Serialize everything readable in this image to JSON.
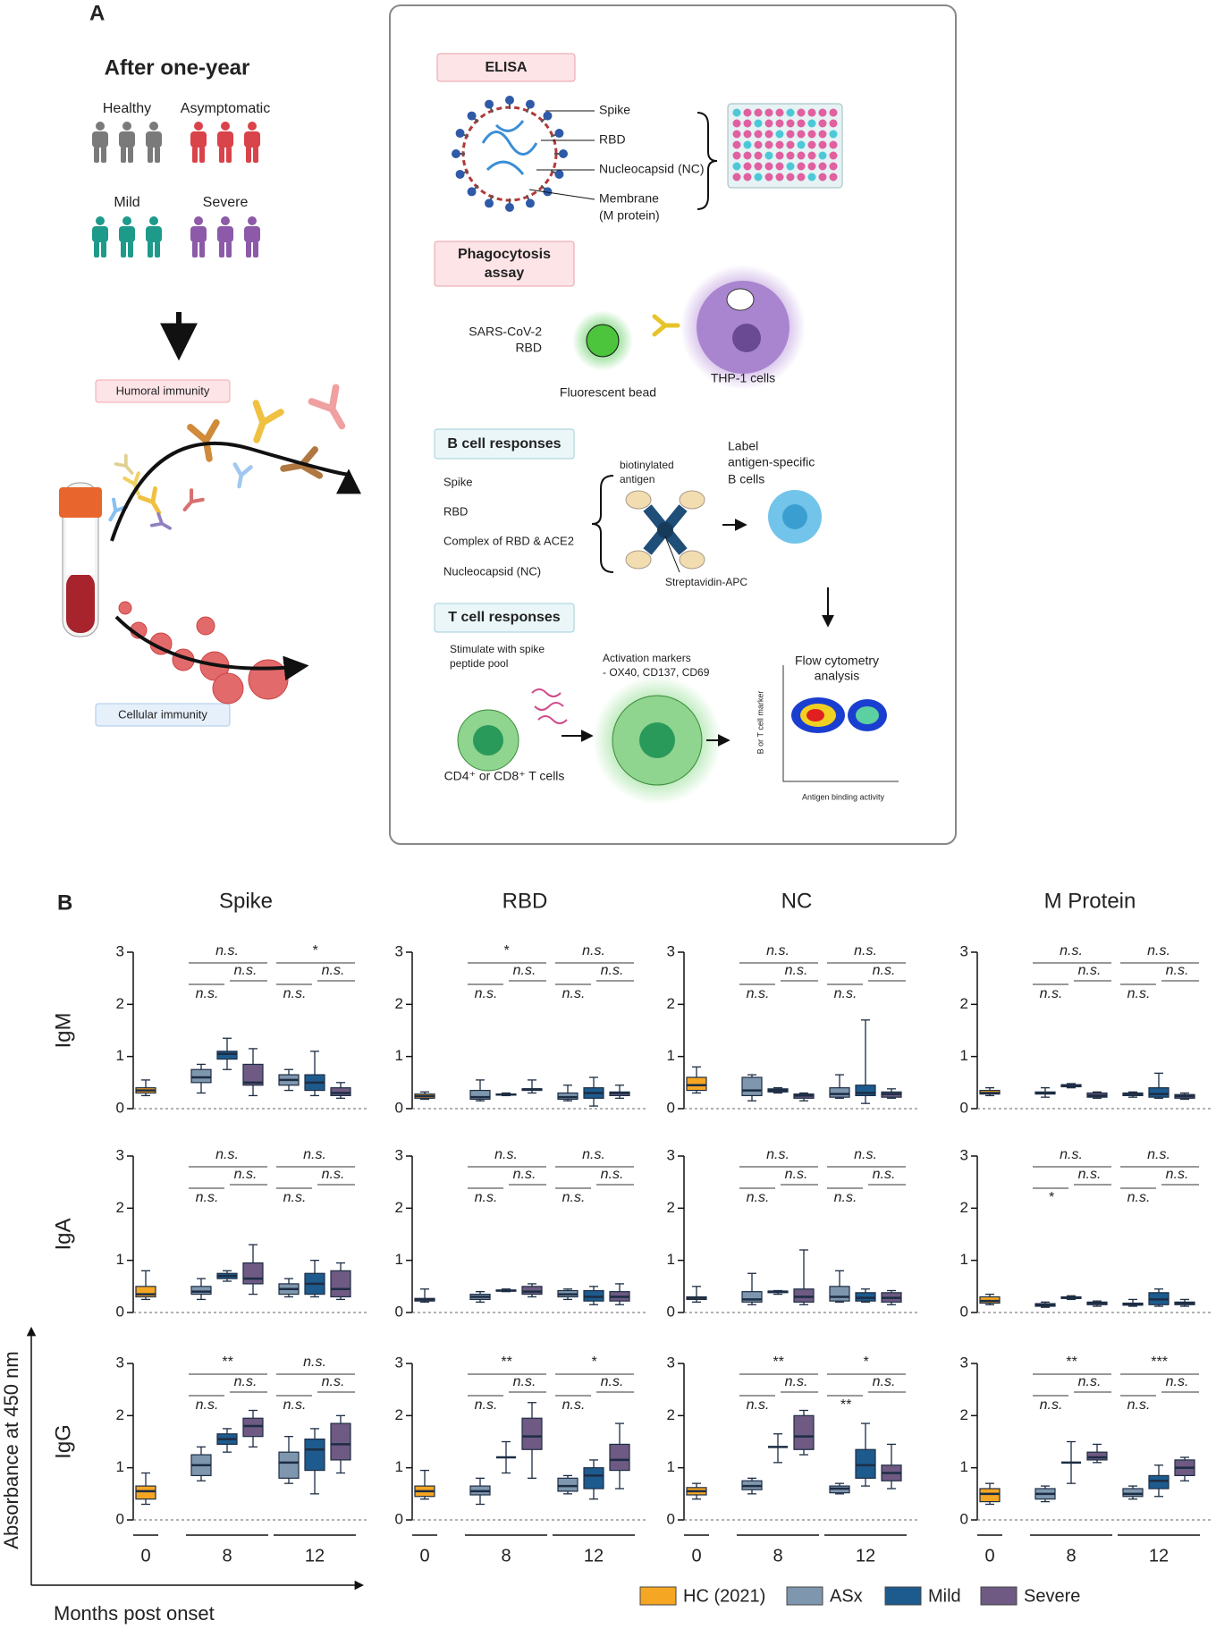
{
  "panel_a": {
    "label": "A",
    "cohort_title": "After one-year",
    "groups": [
      "Healthy",
      "Asymptomatic",
      "Mild",
      "Severe"
    ],
    "humoral": "Humoral immunity",
    "cellular": "Cellular immunity",
    "elisa": {
      "title": "ELISA",
      "antigens": [
        "Spike",
        "RBD",
        "Nucleocapsid (NC)",
        "Membrane",
        "(M protein)"
      ]
    },
    "phagocytosis": {
      "title": [
        "Phagocytosis",
        "assay"
      ],
      "rbd_label": [
        "SARS-CoV-2",
        "RBD"
      ],
      "bead": "Fluorescent bead",
      "cells": "THP-1 cells"
    },
    "b_cell": {
      "title": "B cell responses",
      "antigens": [
        "Spike",
        "RBD",
        "Complex of RBD & ACE2",
        "Nucleocapsid (NC)"
      ],
      "probe": [
        "biotinylated",
        "antigen"
      ],
      "streptavidin": "Streptavidin-APC",
      "label": [
        "Label",
        "antigen-specific",
        "B cells"
      ]
    },
    "t_cell": {
      "title": "T cell responses",
      "stimulate": [
        "Stimulate with spike",
        "peptide pool"
      ],
      "cells": "CD4⁺ or CD8⁺ T cells",
      "markers": [
        "Activation markers",
        "- OX40, CD137, CD69"
      ]
    },
    "flow": {
      "title": [
        "Flow cytometry",
        "analysis"
      ],
      "y_label": "B or T cell marker",
      "x_label": "Antigen binding activity"
    }
  },
  "panel_b": {
    "label": "B",
    "columns": [
      "Spike",
      "RBD",
      "NC",
      "M Protein"
    ],
    "rows": [
      "IgM",
      "IgA",
      "IgG"
    ],
    "categories": [
      "0",
      "8",
      "12"
    ],
    "ylabel": "Absorbance at 450 nm",
    "xlabel": "Months post onset",
    "legend": [
      {
        "name": "HC (2021)",
        "color": "#f5a623"
      },
      {
        "name": "ASx",
        "color": "#7f97ae"
      },
      {
        "name": "Mild",
        "color": "#1d5b8e"
      },
      {
        "name": "Severe",
        "color": "#6e5a82"
      }
    ]
  },
  "chart_data": [
    {
      "type": "box",
      "ylim": [
        0,
        3
      ],
      "yticks": [
        0,
        1,
        2,
        3
      ],
      "values": [
        [
          [
            0.25,
            0.3,
            0.35,
            0.4,
            0.55
          ],
          null,
          null
        ],
        [
          null,
          [
            0.3,
            0.5,
            0.6,
            0.75,
            0.85
          ],
          [
            0.35,
            0.45,
            0.55,
            0.65,
            0.75
          ]
        ],
        [
          null,
          [
            0.75,
            0.95,
            1.05,
            1.1,
            1.35
          ],
          [
            0.25,
            0.35,
            0.5,
            0.65,
            1.1
          ]
        ],
        [
          null,
          [
            0.25,
            0.45,
            0.5,
            0.85,
            1.15
          ],
          [
            0.2,
            0.25,
            0.3,
            0.4,
            0.5
          ]
        ]
      ],
      "annotations": [
        [
          "n.s.",
          "n.s.",
          "n.s."
        ],
        [
          "*",
          "n.s.",
          "n.s."
        ]
      ]
    },
    {
      "type": "box",
      "ylim": [
        0,
        3
      ],
      "yticks": [
        0,
        1,
        2,
        3
      ],
      "values": [
        [
          [
            0.18,
            0.2,
            0.24,
            0.28,
            0.32
          ],
          null,
          null
        ],
        [
          null,
          [
            0.15,
            0.18,
            0.22,
            0.35,
            0.55
          ],
          [
            0.15,
            0.18,
            0.22,
            0.3,
            0.45
          ]
        ],
        [
          null,
          [
            0.25,
            0.26,
            0.27,
            0.28,
            0.3
          ],
          [
            0.05,
            0.2,
            0.3,
            0.4,
            0.6
          ]
        ],
        [
          null,
          [
            0.3,
            0.35,
            0.37,
            0.38,
            0.55
          ],
          [
            0.2,
            0.25,
            0.3,
            0.32,
            0.45
          ]
        ]
      ],
      "annotations": [
        [
          "*",
          "n.s.",
          "n.s."
        ],
        [
          "n.s.",
          "n.s.",
          "n.s."
        ]
      ]
    },
    {
      "type": "box",
      "ylim": [
        0,
        3
      ],
      "yticks": [
        0,
        1,
        2,
        3
      ],
      "values": [
        [
          [
            0.3,
            0.35,
            0.45,
            0.6,
            0.8
          ],
          null,
          null
        ],
        [
          null,
          [
            0.15,
            0.25,
            0.35,
            0.6,
            0.65
          ],
          [
            0.2,
            0.22,
            0.28,
            0.4,
            0.65
          ]
        ],
        [
          null,
          [
            0.3,
            0.32,
            0.35,
            0.38,
            0.4
          ],
          [
            0.1,
            0.25,
            0.3,
            0.45,
            1.7
          ]
        ],
        [
          null,
          [
            0.15,
            0.2,
            0.25,
            0.28,
            0.3
          ],
          [
            0.2,
            0.22,
            0.28,
            0.32,
            0.38
          ]
        ]
      ],
      "annotations": [
        [
          "n.s.",
          "n.s.",
          "n.s."
        ],
        [
          "n.s.",
          "n.s.",
          "n.s."
        ]
      ]
    },
    {
      "type": "box",
      "ylim": [
        0,
        3
      ],
      "yticks": [
        0,
        1,
        2,
        3
      ],
      "values": [
        [
          [
            0.25,
            0.28,
            0.3,
            0.35,
            0.4
          ],
          null,
          null
        ],
        [
          null,
          [
            0.22,
            0.28,
            0.3,
            0.32,
            0.4
          ],
          [
            0.22,
            0.25,
            0.28,
            0.3,
            0.32
          ]
        ],
        [
          null,
          [
            0.4,
            0.42,
            0.44,
            0.46,
            0.48
          ],
          [
            0.2,
            0.22,
            0.28,
            0.4,
            0.68
          ]
        ],
        [
          null,
          [
            0.2,
            0.22,
            0.25,
            0.3,
            0.32
          ],
          [
            0.18,
            0.2,
            0.24,
            0.27,
            0.3
          ]
        ]
      ],
      "annotations": [
        [
          "n.s.",
          "n.s.",
          "n.s."
        ],
        [
          "n.s.",
          "n.s.",
          "n.s."
        ]
      ]
    },
    {
      "type": "box",
      "ylim": [
        0,
        3
      ],
      "yticks": [
        0,
        1,
        2,
        3
      ],
      "values": [
        [
          [
            0.25,
            0.3,
            0.35,
            0.5,
            0.8
          ],
          null,
          null
        ],
        [
          null,
          [
            0.25,
            0.35,
            0.4,
            0.5,
            0.65
          ],
          [
            0.3,
            0.35,
            0.45,
            0.55,
            0.65
          ]
        ],
        [
          null,
          [
            0.6,
            0.65,
            0.7,
            0.75,
            0.8
          ],
          [
            0.3,
            0.35,
            0.55,
            0.75,
            1.0
          ]
        ],
        [
          null,
          [
            0.35,
            0.55,
            0.65,
            0.95,
            1.3
          ],
          [
            0.25,
            0.3,
            0.45,
            0.8,
            0.95
          ]
        ]
      ],
      "annotations": [
        [
          "n.s.",
          "n.s.",
          "n.s."
        ],
        [
          "n.s.",
          "n.s.",
          "n.s."
        ]
      ]
    },
    {
      "type": "box",
      "ylim": [
        0,
        3
      ],
      "yticks": [
        0,
        1,
        2,
        3
      ],
      "values": [
        [
          [
            0.2,
            0.22,
            0.25,
            0.27,
            0.45
          ],
          null,
          null
        ],
        [
          null,
          [
            0.2,
            0.25,
            0.3,
            0.35,
            0.4
          ],
          [
            0.25,
            0.3,
            0.35,
            0.42,
            0.45
          ]
        ],
        [
          null,
          [
            0.4,
            0.41,
            0.42,
            0.43,
            0.45
          ],
          [
            0.15,
            0.22,
            0.3,
            0.42,
            0.5
          ]
        ],
        [
          null,
          [
            0.3,
            0.35,
            0.4,
            0.5,
            0.55
          ],
          [
            0.15,
            0.22,
            0.3,
            0.4,
            0.55
          ]
        ]
      ],
      "annotations": [
        [
          "n.s.",
          "n.s.",
          "n.s."
        ],
        [
          "n.s.",
          "n.s.",
          "n.s."
        ]
      ]
    },
    {
      "type": "box",
      "ylim": [
        0,
        3
      ],
      "yticks": [
        0,
        1,
        2,
        3
      ],
      "values": [
        [
          [
            0.2,
            0.25,
            0.28,
            0.3,
            0.5
          ],
          null,
          null
        ],
        [
          null,
          [
            0.15,
            0.2,
            0.25,
            0.4,
            0.75
          ],
          [
            0.2,
            0.22,
            0.3,
            0.5,
            0.8
          ]
        ],
        [
          null,
          [
            0.35,
            0.38,
            0.4,
            0.41,
            0.42
          ],
          [
            0.2,
            0.22,
            0.28,
            0.38,
            0.45
          ]
        ],
        [
          null,
          [
            0.15,
            0.2,
            0.3,
            0.45,
            1.2
          ],
          [
            0.15,
            0.2,
            0.28,
            0.38,
            0.42
          ]
        ]
      ],
      "annotations": [
        [
          "n.s.",
          "n.s.",
          "n.s."
        ],
        [
          "n.s.",
          "n.s.",
          "n.s."
        ]
      ]
    },
    {
      "type": "box",
      "ylim": [
        0,
        3
      ],
      "yticks": [
        0,
        1,
        2,
        3
      ],
      "values": [
        [
          [
            0.15,
            0.18,
            0.22,
            0.3,
            0.35
          ],
          null,
          null
        ],
        [
          null,
          [
            0.1,
            0.12,
            0.15,
            0.17,
            0.2
          ],
          [
            0.12,
            0.14,
            0.16,
            0.18,
            0.25
          ]
        ],
        [
          null,
          [
            0.25,
            0.27,
            0.28,
            0.3,
            0.32
          ],
          [
            0.12,
            0.15,
            0.25,
            0.38,
            0.45
          ]
        ],
        [
          null,
          [
            0.12,
            0.15,
            0.18,
            0.2,
            0.22
          ],
          [
            0.12,
            0.15,
            0.18,
            0.2,
            0.25
          ]
        ]
      ],
      "annotations": [
        [
          "n.s.",
          "n.s.",
          "*"
        ],
        [
          "n.s.",
          "n.s.",
          "n.s."
        ]
      ]
    },
    {
      "type": "box",
      "ylim": [
        0,
        3
      ],
      "yticks": [
        0,
        1,
        2,
        3
      ],
      "values": [
        [
          [
            0.3,
            0.4,
            0.55,
            0.65,
            0.9
          ],
          null,
          null
        ],
        [
          null,
          [
            0.75,
            0.85,
            1.05,
            1.25,
            1.4
          ],
          [
            0.7,
            0.8,
            1.1,
            1.3,
            1.6
          ]
        ],
        [
          null,
          [
            1.3,
            1.45,
            1.55,
            1.65,
            1.75
          ],
          [
            0.5,
            0.95,
            1.35,
            1.55,
            1.75
          ]
        ],
        [
          null,
          [
            1.4,
            1.6,
            1.8,
            1.95,
            2.1
          ],
          [
            0.9,
            1.15,
            1.45,
            1.85,
            2.0
          ]
        ]
      ],
      "annotations": [
        [
          "**",
          "n.s.",
          "n.s."
        ],
        [
          "n.s.",
          "n.s.",
          "n.s."
        ]
      ]
    },
    {
      "type": "box",
      "ylim": [
        0,
        3
      ],
      "yticks": [
        0,
        1,
        2,
        3
      ],
      "values": [
        [
          [
            0.4,
            0.45,
            0.55,
            0.65,
            0.95
          ],
          null,
          null
        ],
        [
          null,
          [
            0.3,
            0.48,
            0.55,
            0.65,
            0.8
          ],
          [
            0.5,
            0.55,
            0.65,
            0.8,
            0.85
          ]
        ],
        [
          null,
          [
            0.9,
            1.2,
            1.2,
            1.2,
            1.5
          ],
          [
            0.4,
            0.6,
            0.85,
            1.0,
            1.15
          ]
        ],
        [
          null,
          [
            0.8,
            1.35,
            1.6,
            1.95,
            2.25
          ],
          [
            0.6,
            0.95,
            1.15,
            1.45,
            1.85
          ]
        ]
      ],
      "annotations": [
        [
          "**",
          "n.s.",
          "n.s."
        ],
        [
          "*",
          "n.s.",
          "n.s."
        ]
      ]
    },
    {
      "type": "box",
      "ylim": [
        0,
        3
      ],
      "yticks": [
        0,
        1,
        2,
        3
      ],
      "values": [
        [
          [
            0.4,
            0.48,
            0.55,
            0.62,
            0.7
          ],
          null,
          null
        ],
        [
          null,
          [
            0.5,
            0.58,
            0.65,
            0.75,
            0.8
          ],
          [
            0.5,
            0.52,
            0.6,
            0.65,
            0.7
          ]
        ],
        [
          null,
          [
            1.1,
            1.4,
            1.4,
            1.4,
            1.65
          ],
          [
            0.65,
            0.8,
            1.05,
            1.35,
            1.85
          ]
        ],
        [
          null,
          [
            1.25,
            1.35,
            1.6,
            2.0,
            2.1
          ],
          [
            0.6,
            0.75,
            0.9,
            1.05,
            1.45
          ]
        ]
      ],
      "annotations": [
        [
          "**",
          "n.s.",
          "n.s."
        ],
        [
          "*",
          "n.s.",
          "**"
        ]
      ]
    },
    {
      "type": "box",
      "ylim": [
        0,
        3
      ],
      "yticks": [
        0,
        1,
        2,
        3
      ],
      "values": [
        [
          [
            0.3,
            0.35,
            0.5,
            0.6,
            0.7
          ],
          null,
          null
        ],
        [
          null,
          [
            0.35,
            0.4,
            0.5,
            0.6,
            0.65
          ],
          [
            0.4,
            0.45,
            0.5,
            0.6,
            0.65
          ]
        ],
        [
          null,
          [
            0.7,
            1.1,
            1.1,
            1.1,
            1.5
          ],
          [
            0.45,
            0.6,
            0.75,
            0.85,
            1.05
          ]
        ],
        [
          null,
          [
            1.1,
            1.15,
            1.2,
            1.3,
            1.45
          ],
          [
            0.75,
            0.85,
            1.0,
            1.15,
            1.2
          ]
        ]
      ],
      "annotations": [
        [
          "**",
          "n.s.",
          "n.s."
        ],
        [
          "***",
          "n.s.",
          "n.s."
        ]
      ]
    }
  ]
}
